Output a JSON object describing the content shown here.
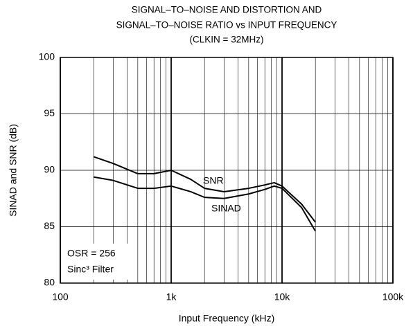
{
  "chart_data": {
    "type": "line",
    "title": [
      "SIGNAL–TO–NOISE AND DISTORTION AND",
      "SIGNAL–TO–NOISE RATIO vs INPUT FREQUENCY",
      "(CLKIN = 32MHz)"
    ],
    "x_label": "Input Frequency (kHz)",
    "y_label": "SINAD and SNR (dB)",
    "x_scale": "log",
    "xlim": [
      100,
      100000
    ],
    "xticks": [
      100,
      {
        "value": 1000,
        "label": "1k"
      },
      {
        "value": 10000,
        "label": "10k"
      },
      {
        "value": 100000,
        "label": "100k"
      }
    ],
    "ylim": [
      80,
      100
    ],
    "yticks": [
      80,
      85,
      90,
      95,
      100
    ],
    "grid": true,
    "x": [
      200,
      300,
      500,
      700,
      1000,
      1500,
      2000,
      3000,
      5000,
      7000,
      8500,
      10000,
      15000,
      20000
    ],
    "series": [
      {
        "name": "SNR",
        "color": "#000000",
        "values": [
          91.2,
          90.6,
          89.7,
          89.7,
          90.0,
          89.2,
          88.4,
          88.1,
          88.4,
          88.7,
          88.9,
          88.6,
          87.0,
          85.4
        ]
      },
      {
        "name": "SINAD",
        "color": "#000000",
        "values": [
          89.4,
          89.1,
          88.4,
          88.4,
          88.6,
          88.1,
          87.6,
          87.5,
          87.9,
          88.3,
          88.6,
          88.4,
          86.7,
          84.6
        ]
      }
    ],
    "annotations": [
      "OSR = 256",
      "Sinc³ Filter"
    ]
  }
}
